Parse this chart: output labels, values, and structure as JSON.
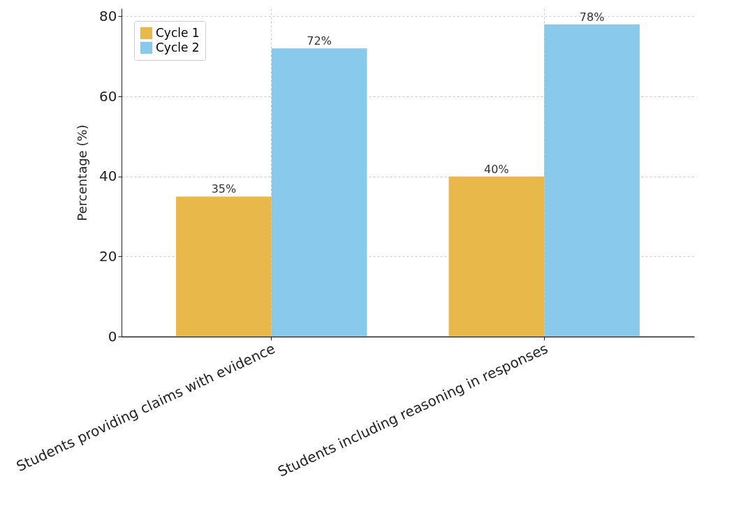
{
  "chart_data": {
    "type": "bar",
    "ylabel": "Percentage (%)",
    "categories": [
      "Students providing claims with evidence",
      "Students including reasoning in responses"
    ],
    "series": [
      {
        "name": "Cycle 1",
        "color": "#e9b84a",
        "values": [
          35,
          40
        ],
        "value_labels": [
          "35%",
          "40%"
        ]
      },
      {
        "name": "Cycle 2",
        "color": "#89c9ec",
        "values": [
          72,
          78
        ],
        "value_labels": [
          "72%",
          "78%"
        ]
      }
    ],
    "ylim": [
      0,
      82
    ],
    "yticks": [
      0,
      20,
      40,
      60,
      80
    ],
    "grid": true,
    "legend": "top left"
  }
}
